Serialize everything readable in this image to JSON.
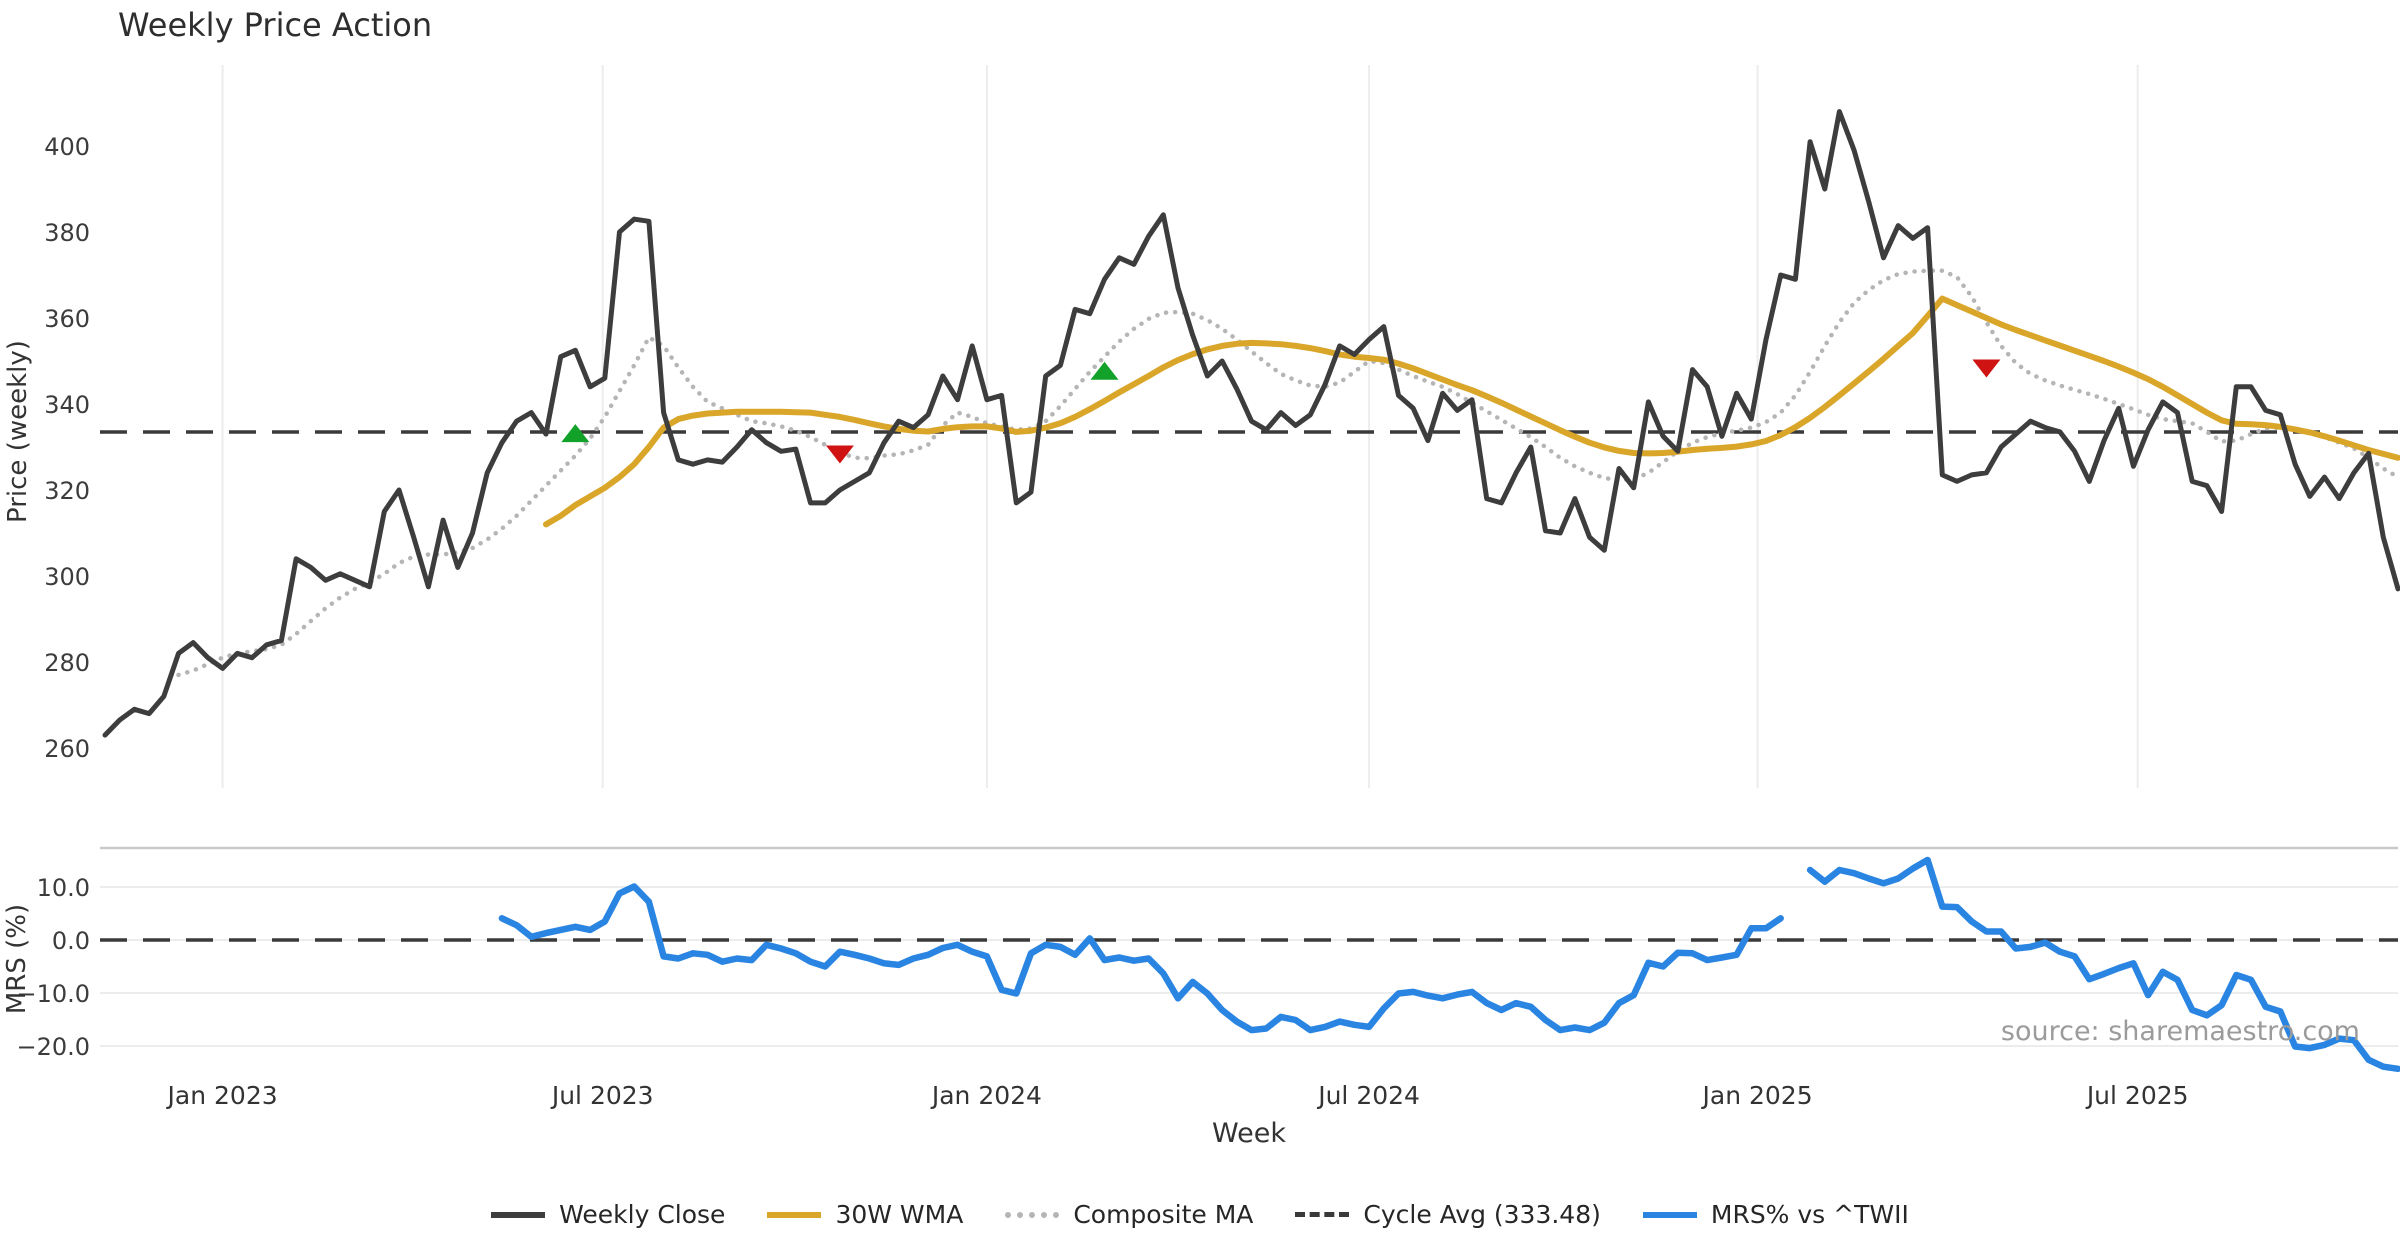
{
  "title": "Weekly Price Action",
  "xlabel": "Week",
  "source": "source: sharemaestro.com",
  "legend": [
    {
      "label": "Weekly Close",
      "style": "solid",
      "color": "#3d3d3d"
    },
    {
      "label": "30W WMA",
      "style": "solid",
      "color": "#d9a62a"
    },
    {
      "label": "Composite MA",
      "style": "dotted",
      "color": "#b5b5b5"
    },
    {
      "label": "Cycle Avg (333.48)",
      "style": "dashed",
      "color": "#3a3a3a"
    },
    {
      "label": "MRS% vs ^TWII",
      "style": "solid",
      "color": "#2a85e2"
    }
  ],
  "chart_data": {
    "type": "line",
    "title": "Weekly Price Action",
    "xlabel": "Week",
    "x_unit": "week_index_from_2022-11-06",
    "weeks_total": 156,
    "x_ticks": [
      {
        "week": 8.0,
        "label": "Jan 2023"
      },
      {
        "week": 33.86,
        "label": "Jul 2023"
      },
      {
        "week": 60.0,
        "label": "Jan 2024"
      },
      {
        "week": 86.0,
        "label": "Jul 2024"
      },
      {
        "week": 112.43,
        "label": "Jan 2025"
      },
      {
        "week": 138.29,
        "label": "Jul 2025"
      }
    ],
    "colors": {
      "close": "#3d3d3d",
      "wma": "#d9a62a",
      "composite": "#b5b5b5",
      "cycle": "#3a3a3a",
      "mrs": "#2a85e2",
      "buy": "#13a229",
      "sell": "#cf1313",
      "grid": "#ececec",
      "panel_edge": "#c9c9c9"
    },
    "panels": [
      {
        "name": "price",
        "ylabel": "Price (weekly)",
        "yticks": [
          260,
          280,
          300,
          320,
          340,
          360,
          380,
          400
        ],
        "ylim": [
          250,
          419
        ],
        "cycle_avg": 333.48,
        "grid": "vertical-only",
        "series": [
          {
            "name": "Weekly Close",
            "role": "close",
            "start_week": 0,
            "values": [
              263,
              266.5,
              269,
              268,
              272,
              282,
              284.5,
              281,
              278.5,
              282,
              281,
              284,
              285,
              304,
              302,
              299,
              300.5,
              299,
              297.5,
              315,
              320,
              309,
              297.5,
              313,
              302,
              310,
              324,
              331,
              336,
              338,
              333,
              351,
              352.5,
              344,
              346,
              380,
              383,
              382.5,
              338,
              327,
              326,
              327,
              326.5,
              330,
              334,
              331,
              329,
              329.5,
              317,
              317,
              320,
              322,
              324,
              331,
              336,
              334.5,
              337.5,
              346.5,
              341,
              353.5,
              341,
              342,
              317,
              319.5,
              346.5,
              349,
              362,
              361,
              369,
              374,
              372.5,
              379,
              384,
              367,
              356,
              346.5,
              350,
              343.5,
              336,
              334,
              338,
              335,
              337.5,
              344.5,
              353.5,
              351.5,
              355,
              358,
              342,
              339,
              331.5,
              342.5,
              338.5,
              341,
              318,
              317,
              324,
              330,
              310.5,
              310,
              318,
              309,
              306,
              325,
              320.5,
              340.5,
              332.5,
              329,
              348,
              344,
              332.5,
              342.5,
              336.5,
              355,
              370,
              369,
              401,
              390,
              408,
              399,
              387,
              374,
              381.5,
              378.5,
              381,
              323.5,
              322,
              323.5,
              324,
              330,
              333,
              336,
              334.5,
              333.5,
              329,
              322,
              331.5,
              339,
              325.5,
              334,
              340.5,
              338,
              322,
              321,
              315,
              344,
              344,
              338.5,
              337.5,
              326,
              318.5,
              323,
              318,
              324,
              328.5,
              309,
              297
            ]
          },
          {
            "name": "30W WMA",
            "role": "wma",
            "start_week": 30,
            "values": [
              312,
              314,
              316.5,
              318.5,
              320.5,
              323,
              326,
              330,
              334.5,
              336.5,
              337.3,
              337.8,
              338,
              338.2,
              338.2,
              338.2,
              338.2,
              338.1,
              338,
              337.5,
              337,
              336.3,
              335.5,
              334.8,
              334.2,
              333.8,
              333.6,
              334.2,
              334.6,
              334.8,
              334.8,
              334.3,
              333.5,
              333.8,
              334.5,
              335.5,
              337,
              338.8,
              340.7,
              342.7,
              344.6,
              346.5,
              348.5,
              350.2,
              351.6,
              352.7,
              353.5,
              354,
              354.2,
              354.1,
              353.9,
              353.5,
              353,
              352.3,
              351.5,
              351,
              350.7,
              350.3,
              349.4,
              348.3,
              347,
              345.7,
              344.4,
              343.2,
              341.8,
              340.3,
              338.7,
              337.1,
              335.5,
              333.9,
              332.4,
              331,
              329.9,
              329.1,
              328.6,
              328.5,
              328.6,
              328.9,
              329.3,
              329.6,
              329.8,
              330.1,
              330.6,
              331.4,
              332.8,
              334.6,
              336.8,
              339.3,
              342,
              344.8,
              347.6,
              350.5,
              353.5,
              356.5,
              360.5,
              364.5,
              363,
              361.5,
              360,
              358.5,
              357.2,
              356,
              354.8,
              353.6,
              352.4,
              351.2,
              350,
              348.7,
              347.3,
              345.8,
              344,
              342,
              340,
              338,
              336.2,
              335.4,
              335.3,
              335.1,
              334.7,
              334.1,
              333.4,
              332.5,
              331.5,
              330.4,
              329.3,
              328.4,
              327.5
            ]
          },
          {
            "name": "Composite MA",
            "role": "composite",
            "start_week": 5,
            "values": [
              277,
              278,
              279.5,
              281,
              282,
              282.5,
              283,
              284,
              286.5,
              289.5,
              292.5,
              295,
              297,
              298.5,
              300.5,
              303,
              304.5,
              305,
              305,
              305.5,
              306.5,
              308.5,
              311,
              314,
              317.5,
              321,
              324.5,
              328,
              332,
              337,
              343,
              349,
              355.5,
              353.5,
              348.5,
              344,
              340.5,
              339,
              337.5,
              336,
              335.5,
              334.8,
              333.8,
              332.3,
              330.5,
              328.8,
              327.5,
              327.4,
              328,
              328.3,
              329.2,
              330.5,
              335,
              338,
              337,
              335.5,
              334.8,
              334,
              334.3,
              336,
              339.5,
              343.5,
              347.5,
              351,
              354.5,
              357.5,
              359.8,
              361.2,
              361.4,
              361,
              359.5,
              357.5,
              355,
              352.2,
              349.5,
              347,
              345.5,
              344.3,
              344,
              345,
              347.5,
              350,
              349.5,
              348,
              346.5,
              345.2,
              344,
              342.3,
              340.3,
              338.3,
              336.3,
              334.3,
              332.3,
              330,
              327.5,
              325.5,
              324,
              322.8,
              322.3,
              322.5,
              324,
              326.5,
              329,
              331,
              332.3,
              333.2,
              333.8,
              334.5,
              335.8,
              338,
              342,
              347.5,
              353.5,
              359,
              363.5,
              366.5,
              368.8,
              370.2,
              370.8,
              371,
              371,
              369.5,
              365,
              359,
              353.5,
              349.5,
              347,
              345.5,
              344.3,
              343.3,
              342.3,
              341.2,
              340,
              338.8,
              337.5,
              336.5,
              336,
              335.5,
              333.5,
              331.3,
              331.5,
              333,
              334.3,
              334.5,
              334.2,
              333.5,
              332.3,
              331,
              329.7,
              327.5,
              325,
              323
            ]
          }
        ],
        "markers": {
          "buy": [
            {
              "week": 32,
              "price": 333
            },
            {
              "week": 68,
              "price": 347.5
            }
          ],
          "sell": [
            {
              "week": 50,
              "price": 328.5
            },
            {
              "week": 128,
              "price": 348.5
            }
          ]
        }
      },
      {
        "name": "mrs",
        "ylabel": "MRS (%)",
        "yticks": [
          10.0,
          0.0,
          -10.0,
          -20.0
        ],
        "ylim": [
          -25.5,
          17.4
        ],
        "zero_line": 0,
        "grid": "horizontal-only",
        "series": [
          {
            "name": "MRS% vs ^TWII",
            "role": "mrs",
            "start_week": 27,
            "values": [
              4.1,
              2.8,
              0.6,
              1.3,
              1.9,
              2.5,
              1.9,
              3.5,
              8.8,
              10.1,
              7.2,
              -3.1,
              -3.5,
              -2.5,
              -2.8,
              -4.1,
              -3.5,
              -3.8,
              -0.9,
              -1.6,
              -2.5,
              -4.1,
              -5.0,
              -2.2,
              -2.8,
              -3.5,
              -4.4,
              -4.7,
              -3.5,
              -2.8,
              -1.5,
              -0.9,
              -2.2,
              -3.1,
              -9.4,
              -10.1,
              -2.5,
              -0.9,
              -1.3,
              -2.8,
              0.3,
              -3.8,
              -3.3,
              -3.9,
              -3.5,
              -6.3,
              -11.0,
              -7.9,
              -10.1,
              -13.2,
              -15.4,
              -17.0,
              -16.7,
              -14.5,
              -15.1,
              -17.0,
              -16.4,
              -15.4,
              -16.0,
              -16.4,
              -12.9,
              -10.1,
              -9.8,
              -10.5,
              -11.0,
              -10.3,
              -9.8,
              -11.9,
              -13.2,
              -11.9,
              -12.6,
              -15.1,
              -17.0,
              -16.5,
              -17.0,
              -15.6,
              -11.9,
              -10.4,
              -4.3,
              -5.0,
              -2.4,
              -2.5,
              -3.8,
              -3.3,
              -2.8,
              2.2,
              2.2,
              4.1,
              null,
              13.2,
              11.0,
              13.2,
              12.6,
              11.6,
              10.7,
              11.6,
              13.5,
              15.1,
              6.3,
              6.2,
              3.5,
              1.6,
              1.6,
              -1.6,
              -1.3,
              -0.5,
              -2.2,
              -3.1,
              -7.4,
              -6.4,
              -5.3,
              -4.4,
              -10.4,
              -6.0,
              -7.5,
              -13.2,
              -14.2,
              -12.3,
              -6.6,
              -7.5,
              -12.6,
              -13.5,
              -20.1,
              -20.4,
              -19.8,
              -18.6,
              -18.9,
              -22.6,
              -23.9,
              -24.3
            ]
          }
        ]
      }
    ],
    "legend_entries": [
      "Weekly Close",
      "30W WMA",
      "Composite MA",
      "Cycle Avg (333.48)",
      "MRS% vs ^TWII"
    ],
    "annotations": {
      "source": "source: sharemaestro.com"
    }
  }
}
